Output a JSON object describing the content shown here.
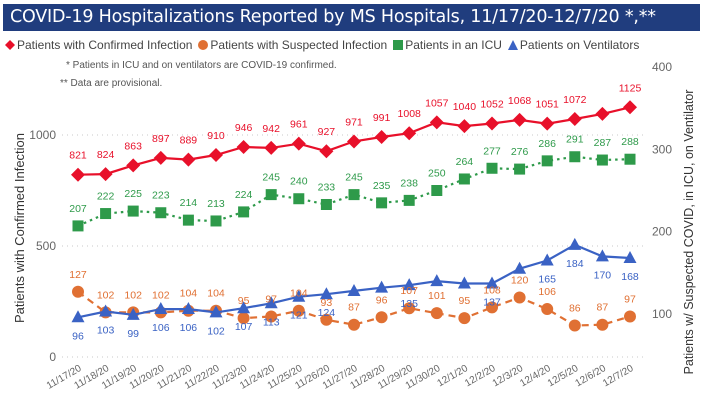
{
  "header": {
    "title": "COVID-19 Hospitalizations Reported by MS Hospitals, 11/17/20-12/7/20 *,**"
  },
  "notes": {
    "note1": "* Patients in ICU and on ventilators are COVID-19 confirmed.",
    "note2": "** Data are provisional."
  },
  "chart_data": {
    "type": "line",
    "title": "COVID-19 Hospitalizations Reported by MS Hospitals, 11/17/20-12/7/20 *,**",
    "xlabel": "",
    "ylabel": "Patients with Confirmed Infection",
    "y2label": "Patients w/ Suspected COVID, in ICU, on Ventilator",
    "ylim": [
      0,
      1310
    ],
    "y2lim": [
      52,
      408
    ],
    "yticks": [
      0,
      500,
      1000
    ],
    "y2ticks": [
      100,
      200,
      300,
      400
    ],
    "grid": true,
    "legend_position": "top-left",
    "categories": [
      "11/17/20",
      "11/18/20",
      "11/19/20",
      "11/20/20",
      "11/21/20",
      "11/22/20",
      "11/23/20",
      "11/24/20",
      "11/25/20",
      "11/26/20",
      "11/27/20",
      "11/28/20",
      "11/29/20",
      "11/30/20",
      "12/1/20",
      "12/2/20",
      "12/3/20",
      "12/4/20",
      "12/5/20",
      "12/6/20",
      "12/7/20"
    ],
    "series": [
      {
        "name": "Patients with Confirmed Infection",
        "axis": "left",
        "color": "#e8102a",
        "marker": "diamond",
        "line": "solid",
        "values": [
          821,
          824,
          863,
          897,
          889,
          910,
          946,
          942,
          961,
          927,
          971,
          991,
          1008,
          1057,
          1040,
          1052,
          1068,
          1051,
          1072,
          1095,
          1125
        ],
        "labels": [
          "821",
          "824",
          "863",
          "897",
          "889",
          "910",
          "946",
          "942",
          "961",
          "927",
          "971",
          "991",
          "1008",
          "1057",
          "1040",
          "1052",
          "1068",
          "1051",
          "1072",
          "",
          "1125"
        ]
      },
      {
        "name": "Patients with Suspected Infection",
        "axis": "right",
        "color": "#e07033",
        "marker": "circle",
        "line": "dashed",
        "values": [
          127,
          102,
          102,
          102,
          104,
          104,
          95,
          97,
          104,
          93,
          87,
          96,
          107,
          101,
          95,
          108,
          120,
          106,
          86,
          87,
          97
        ],
        "labels": [
          "127",
          "102",
          "102",
          "102",
          "104",
          "104",
          "95",
          "97",
          "104",
          "93",
          "87",
          "96",
          "107",
          "101",
          "95",
          "108",
          "120",
          "106",
          "86",
          "87",
          "97"
        ]
      },
      {
        "name": "Patients in an ICU",
        "axis": "right",
        "color": "#2e9a4a",
        "marker": "square",
        "line": "dotted",
        "values": [
          207,
          222,
          225,
          223,
          214,
          213,
          224,
          245,
          240,
          233,
          245,
          235,
          238,
          250,
          264,
          277,
          276,
          286,
          291,
          287,
          288
        ],
        "labels": [
          "207",
          "222",
          "225",
          "223",
          "214",
          "213",
          "224",
          "245",
          "240",
          "233",
          "245",
          "235",
          "238",
          "250",
          "264",
          "277",
          "276",
          "286",
          "291",
          "287",
          "288"
        ]
      },
      {
        "name": "Patients on Ventilators",
        "axis": "right",
        "color": "#3a62c4",
        "marker": "triangle",
        "line": "solid",
        "values": [
          96,
          103,
          99,
          106,
          106,
          102,
          107,
          113,
          121,
          124,
          128,
          132,
          135,
          140,
          137,
          137,
          155,
          165,
          184,
          170,
          168
        ],
        "labels": [
          "96",
          "103",
          "99",
          "106",
          "106",
          "102",
          "107",
          "113",
          "121",
          "124",
          "",
          "",
          "135",
          "",
          "",
          "137",
          "",
          "165",
          "184",
          "170",
          "168"
        ]
      }
    ]
  }
}
